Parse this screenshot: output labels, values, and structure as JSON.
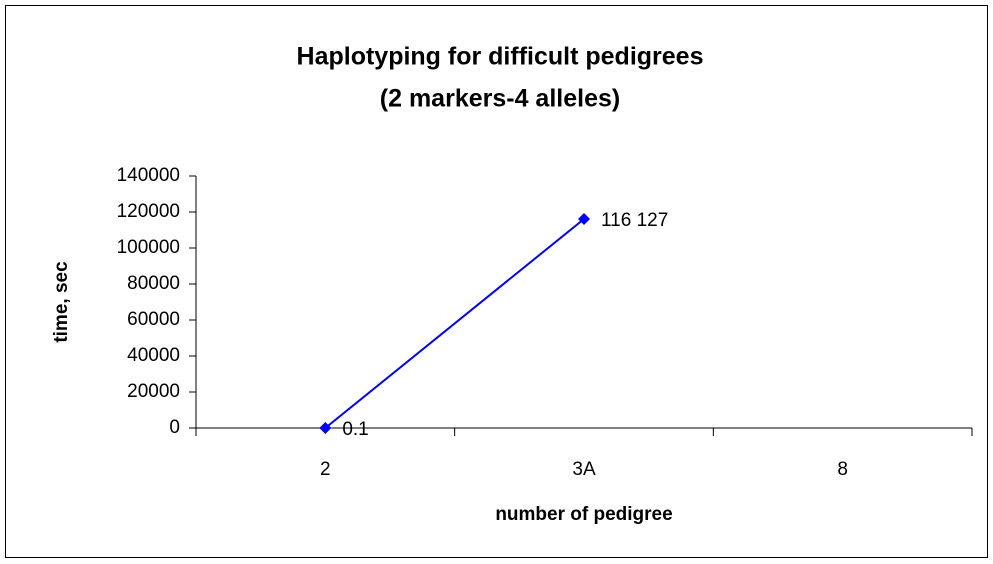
{
  "chart_data": {
    "type": "line",
    "title": [
      "Haplotyping for  difficult pedigrees",
      "(2 markers-4 alleles)"
    ],
    "x_label": "number of pedigree",
    "y_label": "time, sec",
    "categories": [
      "2",
      "3A",
      "8"
    ],
    "series": [
      {
        "color": "#0000ff",
        "values": [
          0.1,
          116127,
          null
        ],
        "value_labels": [
          "0.1",
          "116 127",
          null
        ]
      }
    ],
    "ylim": [
      0,
      140000
    ],
    "yticks": [
      0,
      20000,
      40000,
      60000,
      80000,
      100000,
      120000,
      140000
    ],
    "grid": false
  }
}
